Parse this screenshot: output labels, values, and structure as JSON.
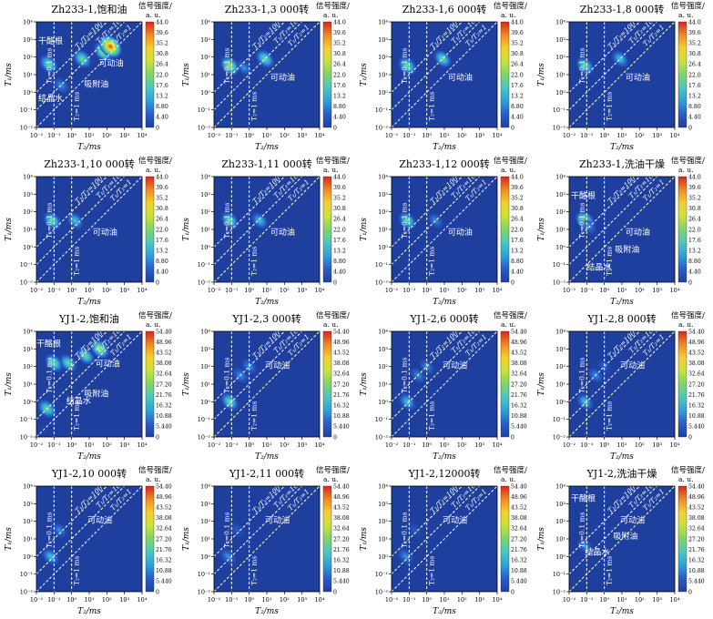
{
  "colorbar_title": "信号强度/",
  "colorbar_unit": "a. u.",
  "x_axis_label": "T₂/ms",
  "y_axis_label": "T₁/ms",
  "x_ticks": [
    "10⁻²",
    "10⁻¹",
    "10⁰",
    "10¹",
    "10²",
    "10³",
    "10⁴"
  ],
  "y_ticks": [
    "10⁴",
    "10³",
    "10²",
    "10¹",
    "10⁰",
    "10⁻¹",
    "10⁻²"
  ],
  "line_labels": [
    "T₁/T₂=100",
    "T₁/T₂=10",
    "T₁/T₂=1"
  ],
  "vline_labels": [
    "T₂=0.1 ms",
    "T₂=1 ms"
  ],
  "colors": {
    "background": "#1f3f9e",
    "diag_line": "#ffffff"
  },
  "colorscale": [
    "#1f3f9e",
    "#2a5cc8",
    "#2ea0d8",
    "#4cc6c0",
    "#7fd46a",
    "#c8e23a",
    "#f3d12d",
    "#f08a24",
    "#d9261c"
  ],
  "chart_data": [
    {
      "type": "heatmap",
      "title": "Zh233-1,饱和油",
      "colorbar_ticks": [
        "44.0",
        "39.6",
        "35.2",
        "30.8",
        "26.4",
        "22.0",
        "17.6",
        "13.2",
        "8.80",
        "4.40",
        "0"
      ],
      "annotations": [
        {
          "text": "干酪根",
          "x": -1.2,
          "y": 2.75
        },
        {
          "text": "吸附油",
          "x": 1.4,
          "y": 0.3
        },
        {
          "text": "可动油",
          "x": 2.25,
          "y": 1.5
        },
        {
          "text": "结晶水",
          "x": -1.2,
          "y": -0.5
        }
      ],
      "blobs": [
        {
          "log_t2": -1.3,
          "log_t1": 1.6,
          "intensity": 0.55
        },
        {
          "log_t2": -0.6,
          "log_t1": 0.4,
          "intensity": 0.3
        },
        {
          "log_t2": 0.6,
          "log_t1": 1.9,
          "intensity": 0.55
        },
        {
          "log_t2": 1.8,
          "log_t1": 2.3,
          "intensity": 0.6
        },
        {
          "log_t2": 2.2,
          "log_t1": 2.6,
          "intensity": 1.0
        }
      ]
    },
    {
      "type": "heatmap",
      "title": "Zh233-1,3 000转",
      "colorbar_ticks": [
        "44.0",
        "39.6",
        "35.2",
        "30.8",
        "26.4",
        "22.0",
        "17.6",
        "13.2",
        "8.80",
        "4.40",
        "0"
      ],
      "annotations": [
        {
          "text": "可动油",
          "x": 1.9,
          "y": 0.7
        }
      ],
      "blobs": [
        {
          "log_t2": -1.1,
          "log_t1": 1.5,
          "intensity": 0.6
        },
        {
          "log_t2": -0.3,
          "log_t1": 1.4,
          "intensity": 0.3
        },
        {
          "log_t2": 0.9,
          "log_t1": 1.9,
          "intensity": 0.55
        }
      ]
    },
    {
      "type": "heatmap",
      "title": "Zh233-1,6 000转",
      "colorbar_ticks": [
        "44.0",
        "39.6",
        "35.2",
        "30.8",
        "26.4",
        "22.0",
        "17.6",
        "13.2",
        "8.80",
        "4.40",
        "0"
      ],
      "annotations": [
        {
          "text": "可动油",
          "x": 1.9,
          "y": 0.7
        }
      ],
      "blobs": [
        {
          "log_t2": -1.1,
          "log_t1": 1.5,
          "intensity": 0.55
        },
        {
          "log_t2": 0.9,
          "log_t1": 1.9,
          "intensity": 0.45
        }
      ]
    },
    {
      "type": "heatmap",
      "title": "Zh233-1,8 000转",
      "colorbar_ticks": [
        "44.0",
        "39.6",
        "35.2",
        "30.8",
        "26.4",
        "22.0",
        "17.6",
        "13.2",
        "8.80",
        "4.40",
        "0"
      ],
      "annotations": [
        {
          "text": "可动油",
          "x": 1.9,
          "y": 0.7
        }
      ],
      "blobs": [
        {
          "log_t2": -1.1,
          "log_t1": 1.5,
          "intensity": 0.5
        },
        {
          "log_t2": 0.9,
          "log_t1": 1.9,
          "intensity": 0.4
        }
      ]
    },
    {
      "type": "heatmap",
      "title": "Zh233-1,10 000转",
      "colorbar_ticks": [
        "44.0",
        "39.6",
        "35.2",
        "30.8",
        "26.4",
        "22.0",
        "17.6",
        "13.2",
        "8.80",
        "4.40",
        "0"
      ],
      "annotations": [
        {
          "text": "可动油",
          "x": 1.9,
          "y": 0.7
        }
      ],
      "blobs": [
        {
          "log_t2": -1.1,
          "log_t1": 1.5,
          "intensity": 0.5
        },
        {
          "log_t2": 0.2,
          "log_t1": 1.5,
          "intensity": 0.4
        }
      ]
    },
    {
      "type": "heatmap",
      "title": "Zh233-1,11 000转",
      "colorbar_ticks": [
        "44.0",
        "39.6",
        "35.2",
        "30.8",
        "26.4",
        "22.0",
        "17.6",
        "13.2",
        "8.80",
        "4.40",
        "0"
      ],
      "annotations": [
        {
          "text": "可动油",
          "x": 1.9,
          "y": 0.7
        }
      ],
      "blobs": [
        {
          "log_t2": -1.1,
          "log_t1": 1.5,
          "intensity": 0.45
        },
        {
          "log_t2": 0.6,
          "log_t1": 1.5,
          "intensity": 0.35
        }
      ]
    },
    {
      "type": "heatmap",
      "title": "Zh233-1,12 000转",
      "colorbar_ticks": [
        "44.0",
        "39.6",
        "35.2",
        "30.8",
        "26.4",
        "22.0",
        "17.6",
        "13.2",
        "8.80",
        "4.40",
        "0"
      ],
      "annotations": [
        {
          "text": "可动油",
          "x": 1.9,
          "y": 0.7
        }
      ],
      "blobs": [
        {
          "log_t2": -1.1,
          "log_t1": 1.5,
          "intensity": 0.45
        },
        {
          "log_t2": 0.5,
          "log_t1": 1.5,
          "intensity": 0.25
        }
      ]
    },
    {
      "type": "heatmap",
      "title": "Zh233-1,洗油干燥",
      "colorbar_ticks": [
        "44.0",
        "39.6",
        "35.2",
        "30.8",
        "26.4",
        "22.0",
        "17.6",
        "13.2",
        "8.80",
        "4.40",
        "0"
      ],
      "annotations": [
        {
          "text": "干酪根",
          "x": -1.2,
          "y": 2.75
        },
        {
          "text": "可动油",
          "x": 1.9,
          "y": 0.7
        },
        {
          "text": "吸附油",
          "x": 1.3,
          "y": -0.3
        },
        {
          "text": "结晶水",
          "x": -0.3,
          "y": -1.3
        }
      ],
      "blobs": [
        {
          "log_t2": -1.1,
          "log_t1": 1.5,
          "intensity": 0.65
        },
        {
          "log_t2": -0.9,
          "log_t1": 1.2,
          "intensity": 0.3
        }
      ]
    },
    {
      "type": "heatmap",
      "title": "YJ1-2,饱和油",
      "colorbar_ticks": [
        "54.40",
        "48.96",
        "43.52",
        "38.08",
        "32.64",
        "27.20",
        "21.76",
        "16.32",
        "10.88",
        "5.440",
        "0"
      ],
      "annotations": [
        {
          "text": "干酪根",
          "x": -1.3,
          "y": 3.15
        },
        {
          "text": "可动油",
          "x": 2.05,
          "y": 2.0
        },
        {
          "text": "吸附油",
          "x": 1.4,
          "y": 0.3
        },
        {
          "text": "结晶水",
          "x": 0.4,
          "y": -0.1
        }
      ],
      "blobs": [
        {
          "log_t2": -1.0,
          "log_t1": 2.2,
          "intensity": 0.55
        },
        {
          "log_t2": -1.4,
          "log_t1": -0.4,
          "intensity": 0.55
        },
        {
          "log_t2": -0.2,
          "log_t1": 2.2,
          "intensity": 0.45
        },
        {
          "log_t2": 0.8,
          "log_t1": 2.6,
          "intensity": 0.45
        },
        {
          "log_t2": 1.6,
          "log_t1": 3.0,
          "intensity": 0.6
        }
      ]
    },
    {
      "type": "heatmap",
      "title": "YJ1-2,3 000转",
      "colorbar_ticks": [
        "54.40",
        "48.96",
        "43.52",
        "38.08",
        "32.64",
        "27.20",
        "21.76",
        "16.32",
        "10.88",
        "5.440",
        "0"
      ],
      "annotations": [
        {
          "text": "可动油",
          "x": 1.6,
          "y": 1.9
        }
      ],
      "blobs": [
        {
          "log_t2": -0.5,
          "log_t1": 1.5,
          "intensity": 0.3
        },
        {
          "log_t2": -1.1,
          "log_t1": 0.0,
          "intensity": 0.45
        },
        {
          "log_t2": 0.0,
          "log_t1": 2.0,
          "intensity": 0.25
        }
      ]
    },
    {
      "type": "heatmap",
      "title": "YJ1-2,6 000转",
      "colorbar_ticks": [
        "54.40",
        "48.96",
        "43.52",
        "38.08",
        "32.64",
        "27.20",
        "21.76",
        "16.32",
        "10.88",
        "5.440",
        "0"
      ],
      "annotations": [
        {
          "text": "可动油",
          "x": 1.6,
          "y": 1.9
        }
      ],
      "blobs": [
        {
          "log_t2": -0.5,
          "log_t1": 1.5,
          "intensity": 0.25
        },
        {
          "log_t2": -1.1,
          "log_t1": 0.0,
          "intensity": 0.4
        },
        {
          "log_t2": 0.0,
          "log_t1": 2.0,
          "intensity": 0.2
        }
      ]
    },
    {
      "type": "heatmap",
      "title": "YJ1-2,8 000转",
      "colorbar_ticks": [
        "54.40",
        "48.96",
        "43.52",
        "38.08",
        "32.64",
        "27.20",
        "21.76",
        "16.32",
        "10.88",
        "5.440",
        "0"
      ],
      "annotations": [
        {
          "text": "可动油",
          "x": 1.6,
          "y": 1.9
        }
      ],
      "blobs": [
        {
          "log_t2": -0.5,
          "log_t1": 1.5,
          "intensity": 0.2
        },
        {
          "log_t2": -1.1,
          "log_t1": 0.0,
          "intensity": 0.35
        },
        {
          "log_t2": 0.0,
          "log_t1": 2.0,
          "intensity": 0.15
        }
      ]
    },
    {
      "type": "heatmap",
      "title": "YJ1-2,10 000转",
      "colorbar_ticks": [
        "54.40",
        "48.96",
        "43.52",
        "38.08",
        "32.64",
        "27.20",
        "21.76",
        "16.32",
        "10.88",
        "5.440",
        "0"
      ],
      "annotations": [
        {
          "text": "可动油",
          "x": 1.6,
          "y": 1.9
        }
      ],
      "blobs": [
        {
          "log_t2": -0.7,
          "log_t1": 1.5,
          "intensity": 0.2
        },
        {
          "log_t2": -1.2,
          "log_t1": 0.0,
          "intensity": 0.35
        }
      ]
    },
    {
      "type": "heatmap",
      "title": "YJ1-2,11 000转",
      "colorbar_ticks": [
        "54.40",
        "48.96",
        "43.52",
        "38.08",
        "32.64",
        "27.20",
        "21.76",
        "16.32",
        "10.88",
        "5.440",
        "0"
      ],
      "annotations": [
        {
          "text": "可动油",
          "x": 1.6,
          "y": 1.9
        }
      ],
      "blobs": [
        {
          "log_t2": -0.7,
          "log_t1": 1.5,
          "intensity": 0.18
        },
        {
          "log_t2": -1.2,
          "log_t1": 0.0,
          "intensity": 0.3
        }
      ]
    },
    {
      "type": "heatmap",
      "title": "YJ1-2,12000转",
      "colorbar_ticks": [
        "54.40",
        "48.96",
        "43.52",
        "38.08",
        "32.64",
        "27.20",
        "21.76",
        "16.32",
        "10.88",
        "5.440",
        "0"
      ],
      "annotations": [
        {
          "text": "可动油",
          "x": 1.6,
          "y": 1.9
        }
      ],
      "blobs": [
        {
          "log_t2": -0.7,
          "log_t1": 1.5,
          "intensity": 0.15
        },
        {
          "log_t2": -1.2,
          "log_t1": 0.0,
          "intensity": 0.3
        }
      ]
    },
    {
      "type": "heatmap",
      "title": "YJ1-2,洗油干燥",
      "colorbar_ticks": [
        "54.40",
        "48.96",
        "43.52",
        "38.08",
        "32.64",
        "27.20",
        "21.76",
        "16.32",
        "10.88",
        "5.440",
        "0"
      ],
      "annotations": [
        {
          "text": "干酪根",
          "x": -1.2,
          "y": 3.15
        },
        {
          "text": "可动油",
          "x": 1.6,
          "y": 1.9
        },
        {
          "text": "吸附油",
          "x": 1.2,
          "y": 1.0
        },
        {
          "text": "结晶水",
          "x": -0.4,
          "y": 0.1
        }
      ],
      "blobs": [
        {
          "log_t2": -1.1,
          "log_t1": 0.6,
          "intensity": 0.3
        }
      ]
    }
  ]
}
